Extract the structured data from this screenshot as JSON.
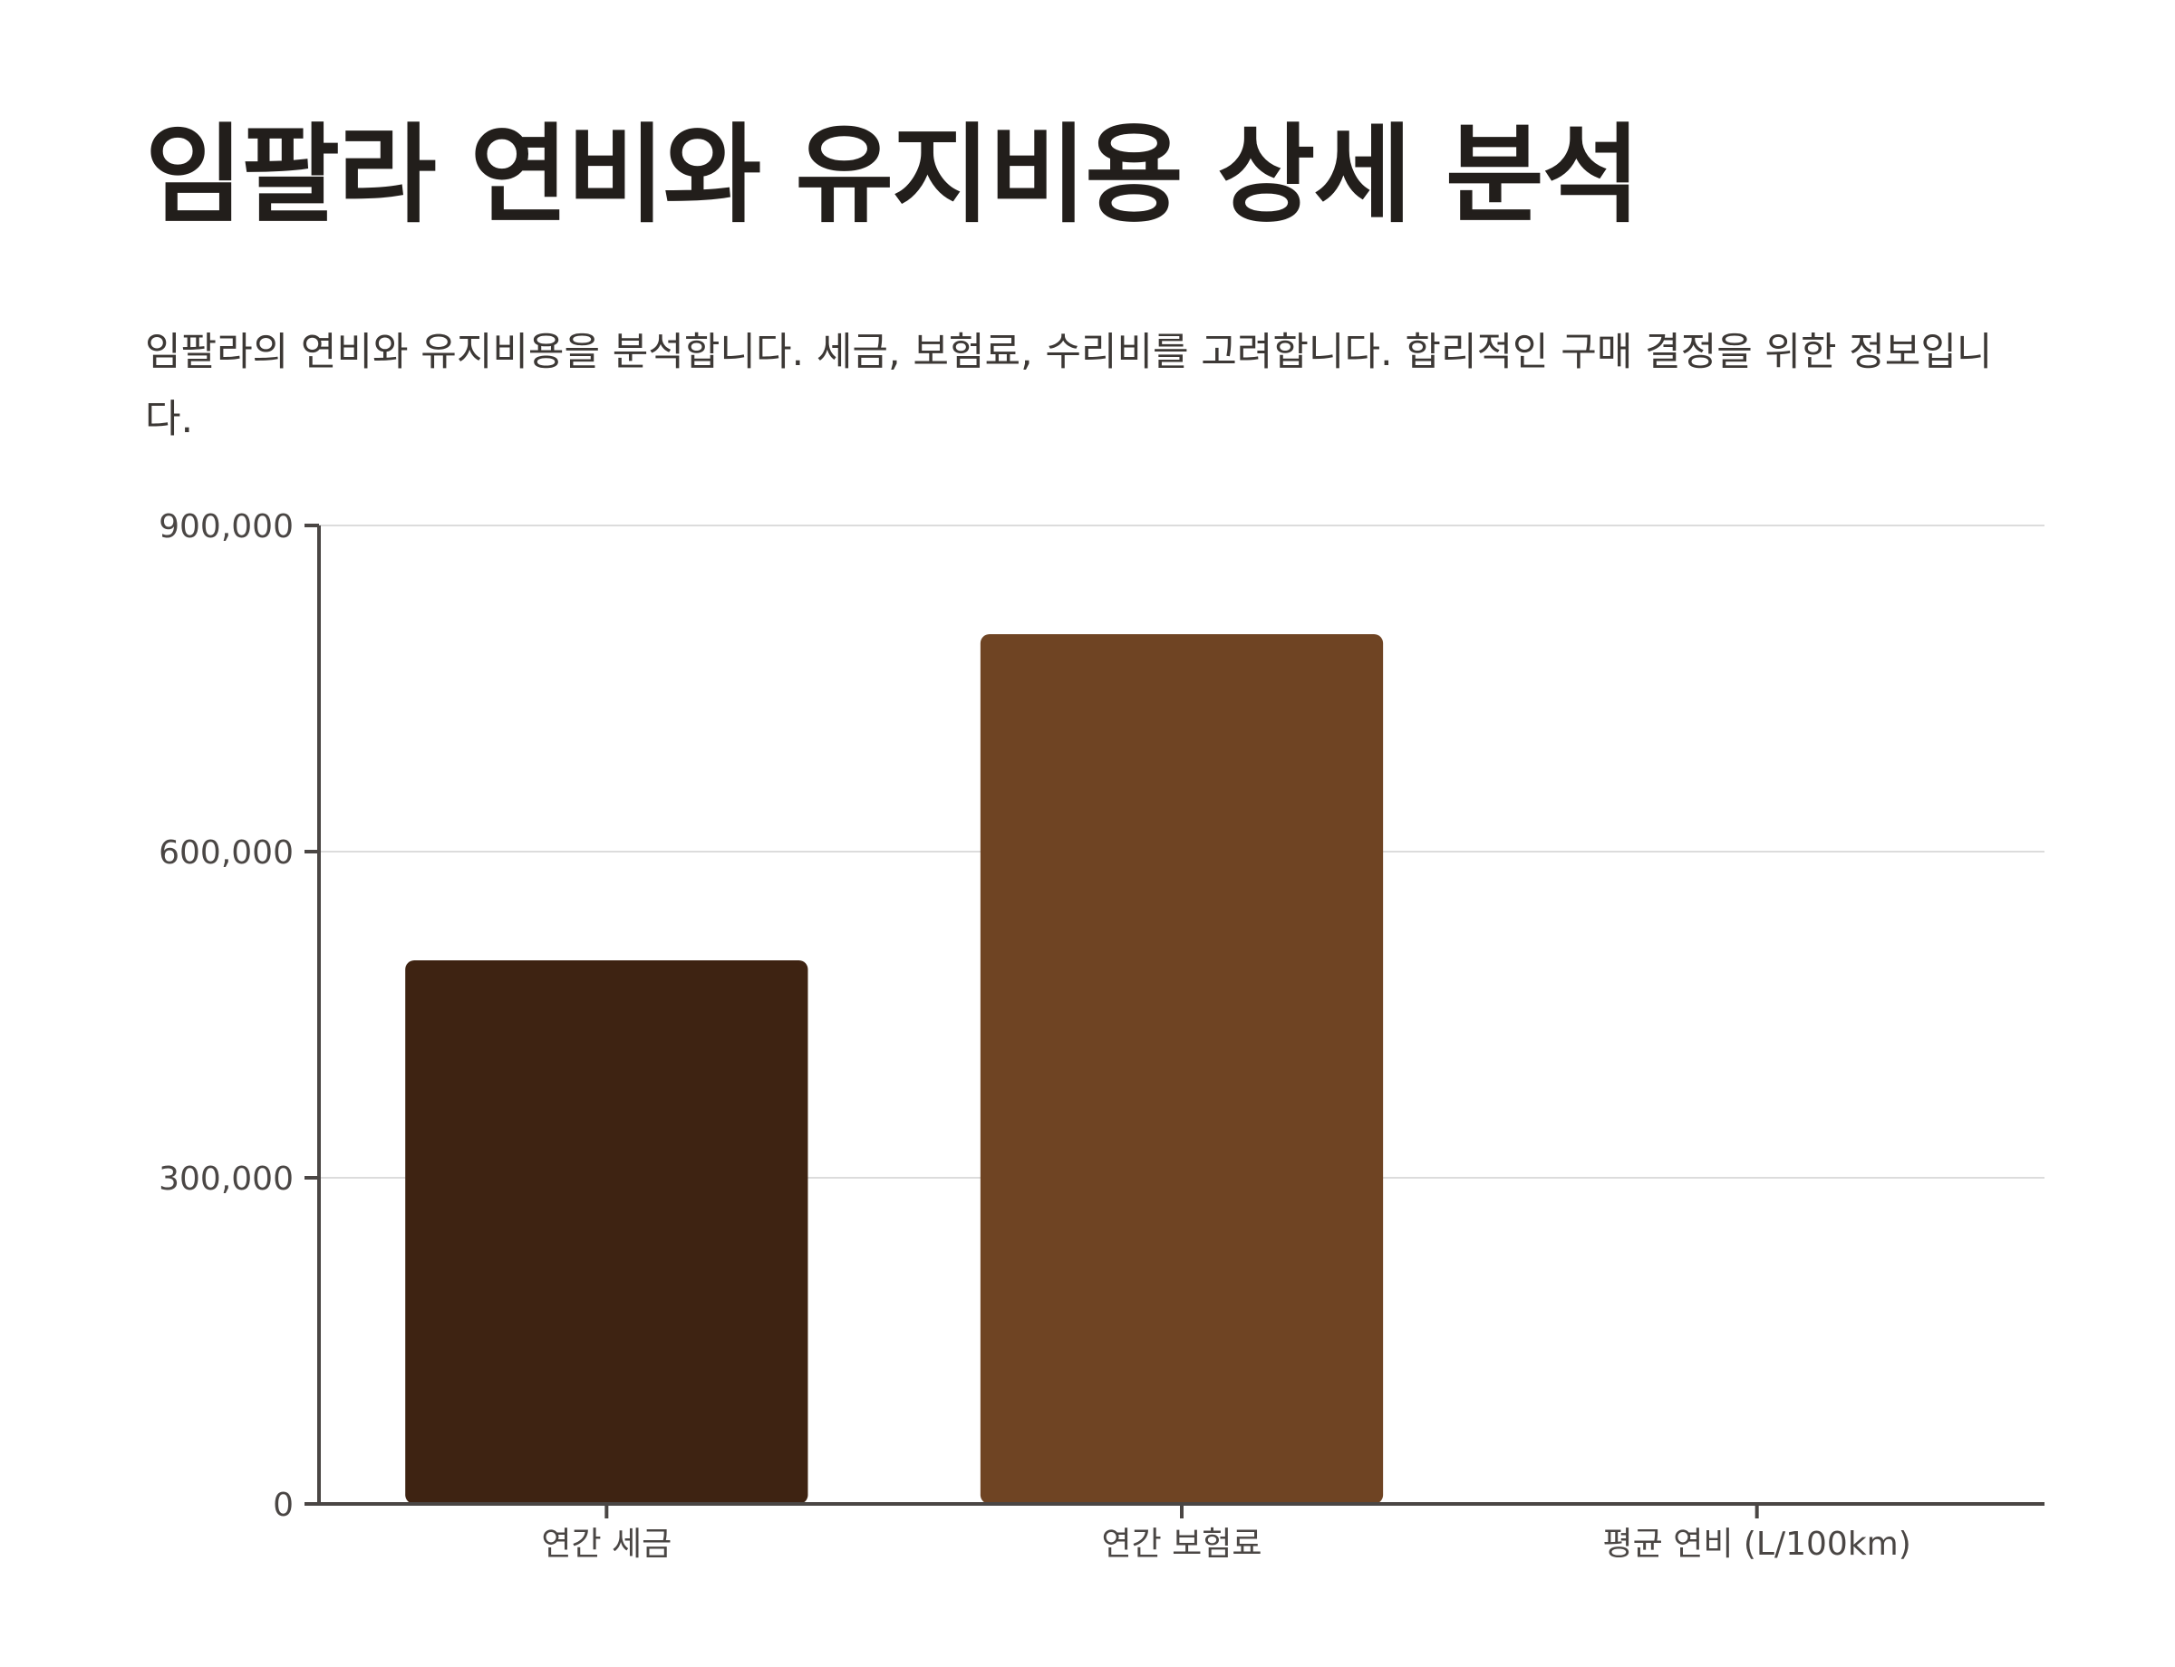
{
  "page": {
    "title": "임팔라 연비와 유지비용 상세 분석",
    "subtitle": "임팔라의 연비와 유지비용을 분석합니다. 세금, 보험료, 수리비를 고려합니다. 합리적인 구매 결정을 위한 정보입니다."
  },
  "chart_data": {
    "type": "bar",
    "categories": [
      "연간 세금",
      "연간 보험료",
      "평균 연비 (L/100km)"
    ],
    "values": [
      500000,
      800000,
      9
    ],
    "colors": [
      "#3e2312",
      "#6f4423",
      "#a8703f"
    ],
    "ylim": [
      0,
      900000
    ],
    "yticks": [
      0,
      300000,
      600000,
      900000
    ],
    "ytick_labels": [
      "0",
      "300,000",
      "600,000",
      "900,000"
    ],
    "grid": true,
    "legend": "none"
  }
}
